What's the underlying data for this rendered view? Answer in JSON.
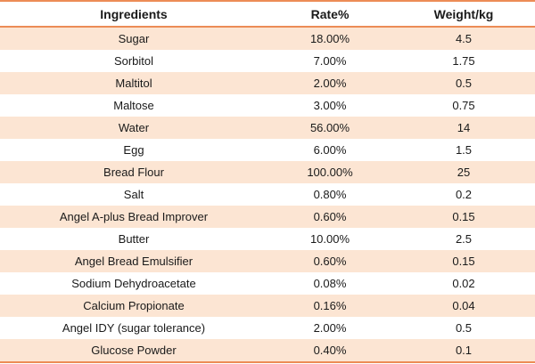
{
  "chart_data": {
    "type": "table",
    "columns": [
      "Ingredients",
      "Rate%",
      "Weight/kg"
    ],
    "rows": [
      [
        "Sugar",
        "18.00%",
        "4.5"
      ],
      [
        "Sorbitol",
        "7.00%",
        "1.75"
      ],
      [
        "Maltitol",
        "2.00%",
        "0.5"
      ],
      [
        "Maltose",
        "3.00%",
        "0.75"
      ],
      [
        "Water",
        "56.00%",
        "14"
      ],
      [
        "Egg",
        "6.00%",
        "1.5"
      ],
      [
        "Bread Flour",
        "100.00%",
        "25"
      ],
      [
        "Salt",
        "0.80%",
        "0.2"
      ],
      [
        "Angel A-plus Bread Improver",
        "0.60%",
        "0.15"
      ],
      [
        "Butter",
        "10.00%",
        "2.5"
      ],
      [
        "Angel Bread Emulsifier",
        "0.60%",
        "0.15"
      ],
      [
        "Sodium Dehydroacetate",
        "0.08%",
        "0.02"
      ],
      [
        "Calcium Propionate",
        "0.16%",
        "0.04"
      ],
      [
        "Angel IDY (sugar tolerance)",
        "2.00%",
        "0.5"
      ],
      [
        "Glucose Powder",
        "0.40%",
        "0.1"
      ]
    ]
  },
  "colors": {
    "border": "#EC8C56",
    "row_alt": "#FCE5D3",
    "row_base": "#FFFFFF",
    "text": "#1A1A1A"
  }
}
